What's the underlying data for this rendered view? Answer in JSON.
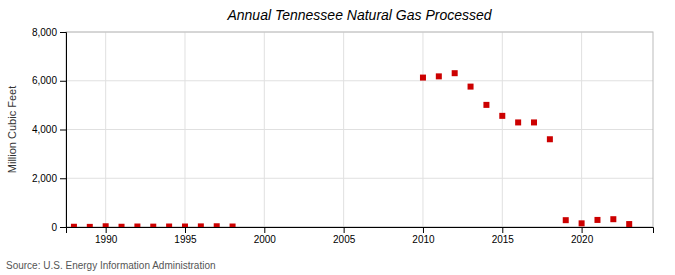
{
  "chart_data": {
    "type": "scatter",
    "title": "Annual Tennessee Natural Gas Processed",
    "ylabel": "Million Cubic Feet",
    "annotation": "Source: U.S. Energy Information Administration",
    "x": [
      1988,
      1989,
      1990,
      1991,
      1992,
      1993,
      1994,
      1995,
      1996,
      1997,
      1998,
      2010,
      2011,
      2012,
      2013,
      2014,
      2015,
      2016,
      2017,
      2018,
      2019,
      2020,
      2021,
      2022,
      2023
    ],
    "values": [
      10,
      5,
      30,
      10,
      20,
      15,
      20,
      20,
      25,
      30,
      20,
      6130,
      6180,
      6310,
      5760,
      5010,
      4560,
      4290,
      4290,
      3600,
      280,
      150,
      290,
      320,
      120
    ],
    "color": "#cc0000",
    "marker": "square",
    "xlim": [
      1987.5,
      2024.5
    ],
    "xticks": [
      1990,
      1995,
      2000,
      2005,
      2010,
      2015,
      2020
    ],
    "ylim": [
      0,
      8000
    ],
    "yticks": [
      0,
      {
        "value": 2000,
        "label": "2,000"
      },
      {
        "value": 4000,
        "label": "4,000"
      },
      {
        "value": 6000,
        "label": "6,000"
      },
      {
        "value": 8000,
        "label": "8,000"
      }
    ],
    "grid": true
  }
}
